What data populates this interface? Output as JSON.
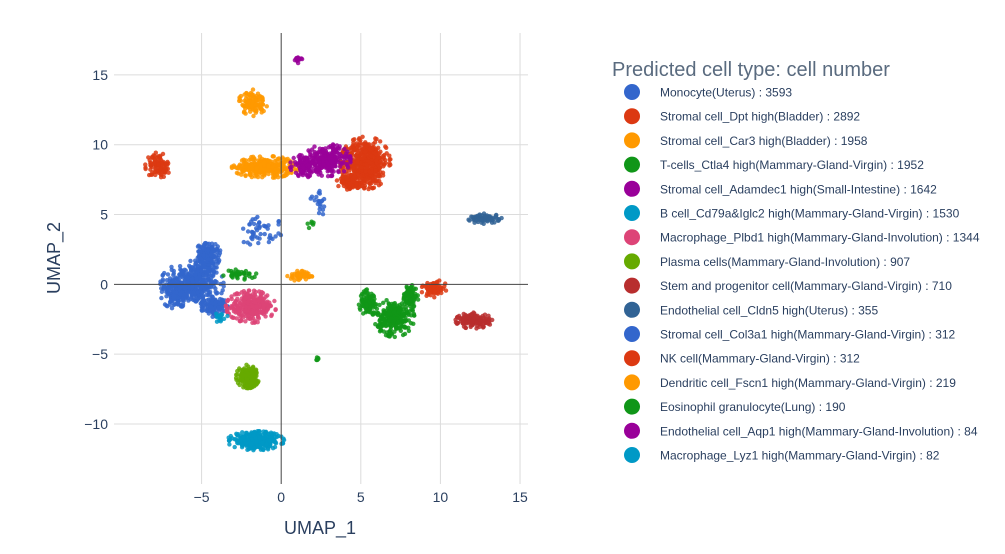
{
  "chart_data": {
    "type": "scatter",
    "title": "",
    "xlabel": "UMAP_1",
    "ylabel": "UMAP_2",
    "xlim": [
      -10.5,
      15.5
    ],
    "ylim": [
      -14.3,
      18.0
    ],
    "xticks": [
      -5,
      0,
      5,
      10,
      15
    ],
    "yticks": [
      -10,
      -5,
      0,
      5,
      10,
      15
    ],
    "xtick_labels": [
      "−5",
      "0",
      "5",
      "10",
      "15"
    ],
    "ytick_labels": [
      "−10",
      "−5",
      "0",
      "5",
      "10",
      "15"
    ],
    "grid": true,
    "zero_lines": true,
    "legend": {
      "title": "Predicted cell type: cell number",
      "placement": "right"
    },
    "series": [
      {
        "name": "Monocyte(Uterus) : 3593",
        "color": "#3366CC",
        "count": 3593,
        "clusters": [
          {
            "cx": -5.6,
            "cy": 0.0,
            "rx": 1.9,
            "ry": 1.6,
            "w": 0.55
          },
          {
            "cx": -4.6,
            "cy": 2.0,
            "rx": 0.8,
            "ry": 1.0,
            "w": 0.2
          },
          {
            "cx": -4.2,
            "cy": -1.6,
            "rx": 0.8,
            "ry": 0.7,
            "w": 0.15
          },
          {
            "cx": -6.6,
            "cy": -0.8,
            "rx": 0.9,
            "ry": 0.9,
            "w": 0.1
          }
        ]
      },
      {
        "name": "Stromal cell_Dpt high(Bladder) : 2892",
        "color": "#DC3912",
        "count": 2892,
        "clusters": [
          {
            "cx": 5.3,
            "cy": 8.7,
            "rx": 1.5,
            "ry": 1.8,
            "w": 0.85
          },
          {
            "cx": 4.3,
            "cy": 7.3,
            "rx": 0.8,
            "ry": 0.5,
            "w": 0.15
          }
        ]
      },
      {
        "name": "Stromal cell_Car3 high(Bladder) : 1958",
        "color": "#FF9900",
        "count": 1958,
        "clusters": [
          {
            "cx": -1.0,
            "cy": 8.4,
            "rx": 2.0,
            "ry": 0.75,
            "w": 0.75
          },
          {
            "cx": -1.8,
            "cy": 13.0,
            "rx": 0.9,
            "ry": 0.9,
            "w": 0.25
          }
        ]
      },
      {
        "name": "T-cells_Ctla4 high(Mammary-Gland-Virgin) : 1952",
        "color": "#109618",
        "count": 1952,
        "clusters": [
          {
            "cx": 7.1,
            "cy": -2.4,
            "rx": 1.2,
            "ry": 1.3,
            "w": 0.6
          },
          {
            "cx": 5.5,
            "cy": -1.3,
            "rx": 0.6,
            "ry": 0.9,
            "w": 0.2
          },
          {
            "cx": 8.1,
            "cy": -0.8,
            "rx": 0.5,
            "ry": 0.9,
            "w": 0.2
          }
        ]
      },
      {
        "name": "Stromal cell_Adamdec1 high(Small-Intestine) : 1642",
        "color": "#990099",
        "count": 1642,
        "clusters": [
          {
            "cx": 2.9,
            "cy": 8.9,
            "rx": 1.4,
            "ry": 1.1,
            "w": 0.7
          },
          {
            "cx": 1.5,
            "cy": 8.5,
            "rx": 0.9,
            "ry": 0.8,
            "w": 0.3
          }
        ]
      },
      {
        "name": "B cell_Cd79a&Iglc2 high(Mammary-Gland-Virgin) : 1530",
        "color": "#0099C6",
        "count": 1530,
        "clusters": [
          {
            "cx": -1.6,
            "cy": -11.2,
            "rx": 1.7,
            "ry": 0.65,
            "w": 1.0
          }
        ]
      },
      {
        "name": "Macrophage_Plbd1 high(Mammary-Gland-Involution) : 1344",
        "color": "#DD4477",
        "count": 1344,
        "clusters": [
          {
            "cx": -1.9,
            "cy": -1.6,
            "rx": 1.5,
            "ry": 1.1,
            "w": 1.0
          }
        ]
      },
      {
        "name": "Plasma cells(Mammary-Gland-Involution) : 907",
        "color": "#66AA00",
        "count": 907,
        "clusters": [
          {
            "cx": -2.1,
            "cy": -6.6,
            "rx": 0.7,
            "ry": 0.8,
            "w": 1.0
          }
        ]
      },
      {
        "name": "Stem and progenitor cell(Mammary-Gland-Virgin) : 710",
        "color": "#B82E2E",
        "count": 710,
        "clusters": [
          {
            "cx": 12.1,
            "cy": -2.6,
            "rx": 1.1,
            "ry": 0.55,
            "w": 1.0
          }
        ]
      },
      {
        "name": "Endothelial cell_Cldn5 high(Uterus) : 355",
        "color": "#316395",
        "count": 355,
        "clusters": [
          {
            "cx": 12.8,
            "cy": 4.7,
            "rx": 1.0,
            "ry": 0.35,
            "w": 1.0
          }
        ]
      },
      {
        "name": "Stromal cell_Col3a1 high(Mammary-Gland-Virgin) : 312",
        "color": "#3366CC",
        "count": 312,
        "clusters": [
          {
            "cx": -1.3,
            "cy": 3.8,
            "rx": 1.4,
            "ry": 1.1,
            "w": 0.7
          },
          {
            "cx": 2.4,
            "cy": 5.8,
            "rx": 0.6,
            "ry": 0.9,
            "w": 0.3
          }
        ]
      },
      {
        "name": "NK cell(Mammary-Gland-Virgin) : 312",
        "color": "#DC3912",
        "count": 312,
        "clusters": [
          {
            "cx": 9.6,
            "cy": -0.3,
            "rx": 0.8,
            "ry": 0.6,
            "w": 1.0
          }
        ]
      },
      {
        "name": "Dendritic cell_Fscn1 high(Mammary-Gland-Virgin) : 219",
        "color": "#FF9900",
        "count": 219,
        "clusters": [
          {
            "cx": 1.2,
            "cy": 0.6,
            "rx": 0.8,
            "ry": 0.35,
            "w": 1.0
          }
        ]
      },
      {
        "name": "Eosinophil granulocyte(Lung) : 190",
        "color": "#109618",
        "count": 190,
        "clusters": [
          {
            "cx": -2.6,
            "cy": 0.7,
            "rx": 1.0,
            "ry": 0.35,
            "w": 0.85
          },
          {
            "cx": 1.8,
            "cy": 4.2,
            "rx": 0.3,
            "ry": 0.3,
            "w": 0.15
          }
        ]
      },
      {
        "name": "Endothelial cell_Aqp1 high(Mammary-Gland-Involution) : 84",
        "color": "#990099",
        "count": 84,
        "clusters": [
          {
            "cx": 1.0,
            "cy": 16.1,
            "rx": 0.3,
            "ry": 0.25,
            "w": 1.0
          }
        ]
      },
      {
        "name": "Macrophage_Lyz1 high(Mammary-Gland-Virgin) : 82",
        "color": "#0099C6",
        "count": 82,
        "clusters": [
          {
            "cx": -3.8,
            "cy": -2.3,
            "rx": 0.5,
            "ry": 0.4,
            "w": 1.0
          }
        ]
      }
    ],
    "extra_clusters": [
      {
        "color": "#DC3912",
        "cx": -7.7,
        "cy": 8.5,
        "rx": 0.8,
        "ry": 0.9,
        "n": 420
      },
      {
        "color": "#109618",
        "cx": 2.3,
        "cy": -5.4,
        "rx": 0.15,
        "ry": 0.25,
        "n": 25
      }
    ]
  }
}
